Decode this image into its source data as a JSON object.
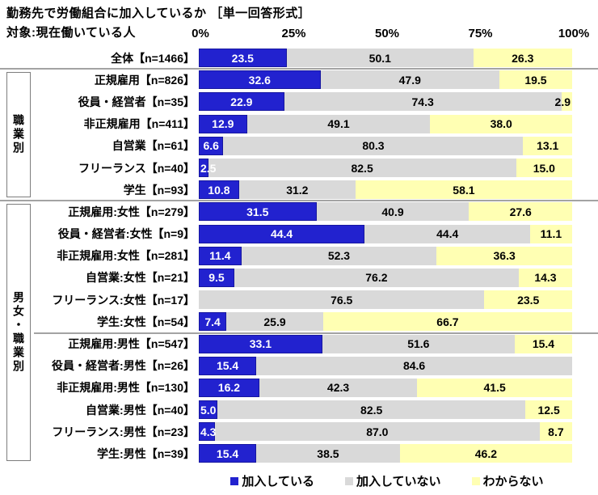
{
  "title": "勤務先で労働組合に加入しているか ［単一回答形式］",
  "subtitle": "対象:現在働いている人",
  "colors": {
    "union_blue": "#2222cf",
    "union_blue_border": "#1717a0",
    "nonunion_gray": "#d9d9d9",
    "unknown_yellow": "#ffffb3",
    "separator_gray": "#a3a3a3",
    "box_border_gray": "#7d7d7d"
  },
  "legend": {
    "items": [
      {
        "label": "加入している",
        "color": "#2222cf"
      },
      {
        "label": "加入していない",
        "color": "#d9d9d9"
      },
      {
        "label": "わからない",
        "color": "#ffffb3"
      }
    ]
  },
  "chart_data": {
    "type": "bar",
    "stacked": true,
    "orientation": "horizontal",
    "title": "勤務先で労働組合に加入しているか ［単一回答形式］",
    "subtitle": "対象:現在働いている人",
    "xlim": [
      0,
      100
    ],
    "x_ticks": [
      "0%",
      "25%",
      "50%",
      "75%",
      "100%"
    ],
    "legend_position": "bottom",
    "categories": [
      "全体【n=1466】",
      "正規雇用【n=826】",
      "役員・経営者【n=35】",
      "非正規雇用【n=411】",
      "自営業【n=61】",
      "フリーランス【n=40】",
      "学生【n=93】",
      "正規雇用:女性【n=279】",
      "役員・経営者:女性【n=9】",
      "非正規雇用:女性【n=281】",
      "自営業:女性【n=21】",
      "フリーランス:女性【n=17】",
      "学生:女性【n=54】",
      "正規雇用:男性【n=547】",
      "役員・経営者:男性【n=26】",
      "非正規雇用:男性【n=130】",
      "自営業:男性【n=40】",
      "フリーランス:男性【n=23】",
      "学生:男性【n=39】"
    ],
    "series": [
      {
        "name": "加入している",
        "color": "#2222cf",
        "text_color": "#ffffff",
        "values": [
          23.5,
          32.6,
          22.9,
          12.9,
          6.6,
          2.5,
          10.8,
          31.5,
          44.4,
          11.4,
          9.5,
          0,
          7.4,
          33.1,
          15.4,
          16.2,
          5.0,
          4.3,
          15.4
        ]
      },
      {
        "name": "加入していない",
        "color": "#d9d9d9",
        "text_color": "#000000",
        "values": [
          50.1,
          47.9,
          74.3,
          49.1,
          80.3,
          82.5,
          31.2,
          40.9,
          44.4,
          52.3,
          76.2,
          76.5,
          25.9,
          51.6,
          84.6,
          42.3,
          82.5,
          87.0,
          38.5
        ]
      },
      {
        "name": "わからない",
        "color": "#ffffb3",
        "text_color": "#000000",
        "values": [
          26.3,
          19.5,
          2.9,
          38.0,
          13.1,
          15.0,
          58.1,
          27.6,
          11.1,
          36.3,
          14.3,
          23.5,
          66.7,
          15.4,
          0,
          41.5,
          12.5,
          8.7,
          46.2
        ]
      }
    ],
    "groups": [
      {
        "label": "職業別",
        "start": 1,
        "end": 6
      },
      {
        "label": "男女・職業別",
        "start": 7,
        "end": 18
      }
    ]
  }
}
